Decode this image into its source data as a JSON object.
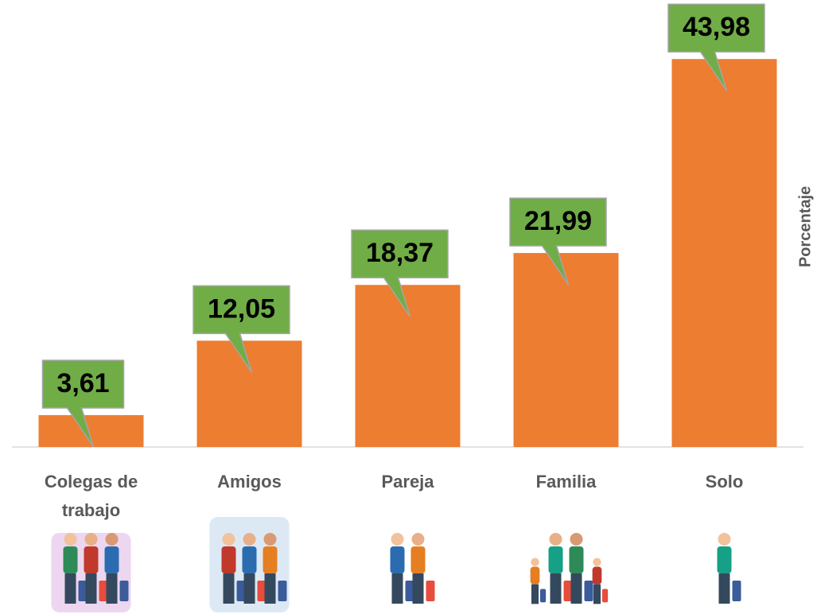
{
  "chart_data": {
    "type": "bar",
    "categories": [
      "Colegas de trabajo",
      "Amigos",
      "Pareja",
      "Familia",
      "Solo"
    ],
    "values": [
      3.61,
      12.05,
      18.37,
      21.99,
      43.98
    ],
    "value_labels": [
      "3,61",
      "12,05",
      "18,37",
      "21,99",
      "43,98"
    ],
    "color": "#ed7d31",
    "label_color": "#70ad47",
    "ylim": [
      0,
      44
    ],
    "y_label": "Porcentaje"
  }
}
